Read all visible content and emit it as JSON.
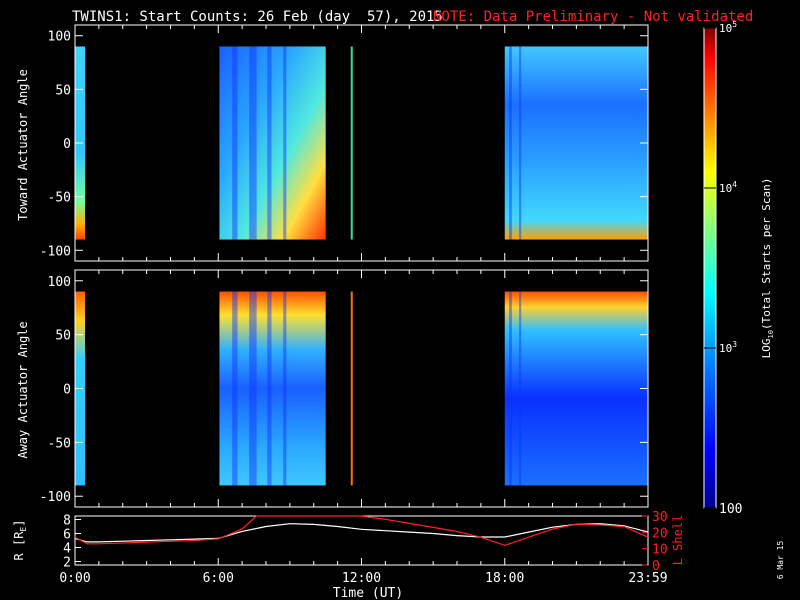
{
  "header": {
    "title": "TWINS1: Start Counts: 26 Feb (day  57), 2015",
    "note": "NOTE: Data Preliminary - Not validated"
  },
  "chart_data": [
    {
      "type": "heatmap",
      "panel": "toward",
      "ylabel": "Toward Actuator Angle",
      "ylim": [
        -110,
        110
      ],
      "yticks": [
        "100",
        "50",
        "0",
        "-50",
        "-100"
      ],
      "ytick_values": [
        100,
        50,
        0,
        -50,
        -100
      ],
      "x_hours_range": [
        0,
        24
      ],
      "data_intervals_hours": [
        [
          0,
          0.42
        ],
        [
          6.05,
          10.5
        ],
        [
          11.55,
          11.62
        ],
        [
          18.0,
          24.0
        ]
      ],
      "z_scale": "log"
    },
    {
      "type": "heatmap",
      "panel": "away",
      "ylabel": "Away Actuator Angle",
      "ylim": [
        -110,
        110
      ],
      "yticks": [
        "100",
        "50",
        "0",
        "-50",
        "-100"
      ],
      "ytick_values": [
        100,
        50,
        0,
        -50,
        -100
      ],
      "x_hours_range": [
        0,
        24
      ],
      "data_intervals_hours": [
        [
          0,
          0.42
        ],
        [
          6.05,
          10.5
        ],
        [
          11.55,
          11.62
        ],
        [
          18.0,
          24.0
        ]
      ],
      "z_scale": "log"
    },
    {
      "type": "line",
      "panel": "ephemeris",
      "xlabel": "Time (UT)",
      "xtick_labels": [
        "0:00",
        "6:00",
        "12:00",
        "18:00",
        "23:59"
      ],
      "xtick_hours": [
        0,
        6,
        12,
        18,
        24
      ],
      "ylabel_left": "R [R",
      "ylabel_left_sub": "E",
      "ylabel_left_close": "]",
      "yticks_left": [
        "8",
        "6",
        "4",
        "2"
      ],
      "ytick_left_values": [
        8,
        6,
        4,
        2
      ],
      "ylim_left": [
        1.5,
        8.5
      ],
      "ylabel_right": "L Shell",
      "yticks_right": [
        "30",
        "20",
        "10",
        "0"
      ],
      "ytick_right_values": [
        30,
        20,
        10,
        0
      ],
      "ylim_right": [
        0,
        30
      ],
      "series": [
        {
          "name": "R",
          "color": "#ffffff",
          "x": [
            0,
            0.5,
            1,
            2,
            3,
            4,
            5,
            6,
            7,
            8,
            9,
            10,
            11,
            12,
            13,
            14,
            15,
            16,
            17,
            18,
            19,
            20,
            21,
            22,
            23,
            24
          ],
          "values": [
            5.3,
            4.8,
            4.8,
            4.9,
            5.0,
            5.1,
            5.2,
            5.3,
            6.3,
            7.0,
            7.4,
            7.3,
            7.0,
            6.6,
            6.4,
            6.2,
            6.0,
            5.7,
            5.5,
            5.5,
            6.2,
            6.9,
            7.3,
            7.4,
            7.1,
            6.2
          ]
        },
        {
          "name": "L Shell",
          "color": "#ff2020",
          "x": [
            0,
            0.5,
            1,
            2,
            3,
            4,
            5,
            6,
            7,
            7.6,
            11.95,
            13,
            14,
            15,
            16,
            17,
            18,
            19,
            20,
            21,
            22,
            23,
            24
          ],
          "values": [
            17,
            13,
            13,
            13.5,
            14,
            14.5,
            15,
            16,
            22,
            30,
            30,
            28,
            25.5,
            23,
            20.5,
            17,
            12,
            17,
            22,
            25,
            24.5,
            23.5,
            17
          ]
        }
      ]
    }
  ],
  "colorbar": {
    "label_prefix": "LOG",
    "label_sub": "10",
    "label_suffix": "(Total Starts per Scan)",
    "ticks": [
      {
        "base": "10",
        "exp": "5",
        "value_log": 5
      },
      {
        "base": "10",
        "exp": "4",
        "value_log": 4
      },
      {
        "base": "10",
        "exp": "3",
        "value_log": 3
      },
      {
        "base": "100",
        "exp": "",
        "value_log": 2
      }
    ],
    "range_log": [
      2,
      5
    ],
    "colors": [
      "#00008f",
      "#0000ff",
      "#0080ff",
      "#00ffff",
      "#80ff80",
      "#ffff00",
      "#ff8000",
      "#ff0000",
      "#800000"
    ]
  },
  "footer": {
    "date_stamp": "6 Mar 15"
  }
}
